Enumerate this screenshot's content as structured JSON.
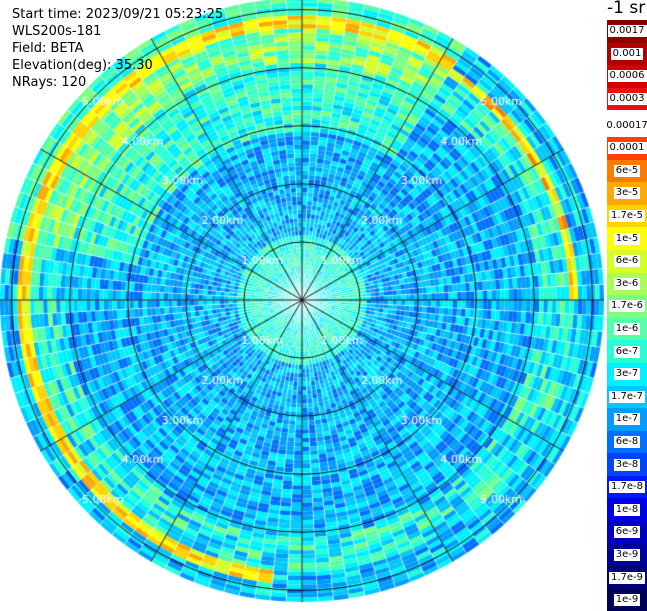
{
  "info": {
    "start_time": "Start time: 2023/09/21 05:23:25",
    "instrument": "WLS200s-181",
    "field": "Field: BETA",
    "elevation": "Elevation(deg): 35.30",
    "nrays": "NRays: 120"
  },
  "units_label": "-1 sr",
  "range_rings": [
    "1.00km",
    "2.00km",
    "3.00km",
    "4.00km",
    "5.00km"
  ],
  "legend": [
    {
      "label": "0.0017",
      "color": "#8b0000"
    },
    {
      "label": "0.001",
      "color": "#b00000"
    },
    {
      "label": "0.0006",
      "color": "#d20000"
    },
    {
      "label": "0.0003",
      "color": "#ee1010"
    },
    {
      "label": "0.00017",
      "color": "#ffffff"
    },
    {
      "label": "0.0001",
      "color": "#ff4000"
    },
    {
      "label": "6e-5",
      "color": "#ff7a00"
    },
    {
      "label": "3e-5",
      "color": "#ffa800"
    },
    {
      "label": "1.7e-5",
      "color": "#ffd200"
    },
    {
      "label": "1e-5",
      "color": "#ffff00"
    },
    {
      "label": "6e-6",
      "color": "#d4ff2a"
    },
    {
      "label": "3e-6",
      "color": "#a8ff56"
    },
    {
      "label": "1.7e-6",
      "color": "#7dff82"
    },
    {
      "label": "1e-6",
      "color": "#52ffaa"
    },
    {
      "label": "6e-7",
      "color": "#29ffd6"
    },
    {
      "label": "3e-7",
      "color": "#00f0ff"
    },
    {
      "label": "1.7e-7",
      "color": "#00c8ff"
    },
    {
      "label": "1e-7",
      "color": "#009cff"
    },
    {
      "label": "6e-8",
      "color": "#0070ff"
    },
    {
      "label": "3e-8",
      "color": "#0044ff"
    },
    {
      "label": "1.7e-8",
      "color": "#0018ff"
    },
    {
      "label": "1e-8",
      "color": "#0000e6"
    },
    {
      "label": "6e-9",
      "color": "#0000c0"
    },
    {
      "label": "3e-9",
      "color": "#00009a"
    },
    {
      "label": "1.7e-9",
      "color": "#000078"
    },
    {
      "label": "1e-9",
      "color": "#00005a"
    }
  ]
}
